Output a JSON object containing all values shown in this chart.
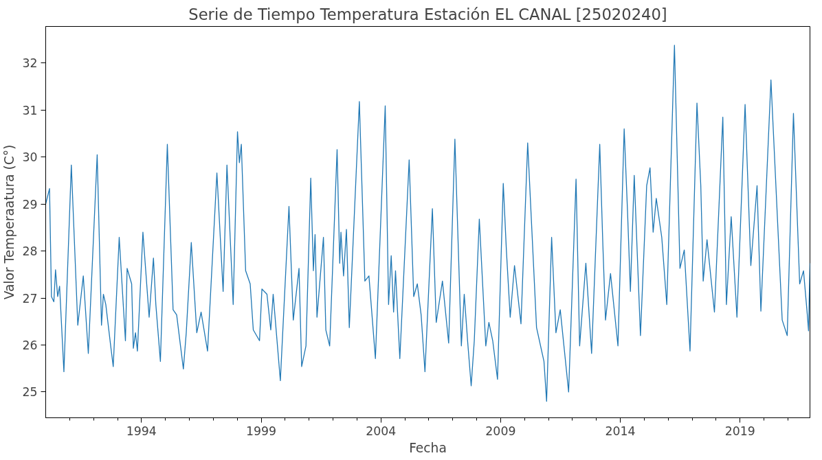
{
  "chart_data": {
    "type": "line",
    "title": "Serie de Tiempo Temperatura Estación EL CANAL [25020240]",
    "xlabel": "Fecha",
    "ylabel": "Valor Temperaatura (C°)",
    "xlim": [
      1990.0,
      2021.92
    ],
    "ylim": [
      24.45,
      32.78
    ],
    "xticks": [
      {
        "value": 1991,
        "label": null
      },
      {
        "value": 1992,
        "label": null
      },
      {
        "value": 1993,
        "label": null
      },
      1994,
      {
        "value": 1995,
        "label": null
      },
      {
        "value": 1996,
        "label": null
      },
      {
        "value": 1997,
        "label": null
      },
      {
        "value": 1998,
        "label": null
      },
      1999,
      {
        "value": 2000,
        "label": null
      },
      {
        "value": 2001,
        "label": null
      },
      {
        "value": 2002,
        "label": null
      },
      {
        "value": 2003,
        "label": null
      },
      2004,
      {
        "value": 2005,
        "label": null
      },
      {
        "value": 2006,
        "label": null
      },
      {
        "value": 2007,
        "label": null
      },
      {
        "value": 2008,
        "label": null
      },
      2009,
      {
        "value": 2010,
        "label": null
      },
      {
        "value": 2011,
        "label": null
      },
      {
        "value": 2012,
        "label": null
      },
      {
        "value": 2013,
        "label": null
      },
      2014,
      {
        "value": 2015,
        "label": null
      },
      {
        "value": 2016,
        "label": null
      },
      {
        "value": 2017,
        "label": null
      },
      {
        "value": 2018,
        "label": null
      },
      2019,
      {
        "value": 2020,
        "label": null
      },
      {
        "value": 2021,
        "label": null
      }
    ],
    "yticks": [
      25,
      26,
      27,
      28,
      29,
      30,
      31,
      32
    ],
    "grid": false,
    "series": [
      {
        "color": "#1f77b4",
        "x": [
          1990.0,
          1990.16,
          1990.24,
          1990.34,
          1990.41,
          1990.5,
          1990.58,
          1990.76,
          1991.07,
          1991.34,
          1991.57,
          1991.78,
          1992.15,
          1992.33,
          1992.41,
          1992.51,
          1992.7,
          1992.82,
          1993.07,
          1993.33,
          1993.4,
          1993.59,
          1993.66,
          1993.75,
          1993.83,
          1994.06,
          1994.32,
          1994.5,
          1994.6,
          1994.79,
          1995.08,
          1995.32,
          1995.47,
          1995.63,
          1995.75,
          1995.87,
          1996.08,
          1996.31,
          1996.49,
          1996.76,
          1997.15,
          1997.41,
          1997.57,
          1997.83,
          1998.01,
          1998.09,
          1998.17,
          1998.35,
          1998.54,
          1998.67,
          1998.93,
          1999.03,
          1999.24,
          1999.4,
          1999.5,
          1999.8,
          2000.16,
          2000.34,
          2000.58,
          2000.69,
          2000.87,
          2001.07,
          2001.18,
          2001.25,
          2001.33,
          2001.47,
          2001.6,
          2001.7,
          2001.86,
          2002.17,
          2002.28,
          2002.33,
          2002.44,
          2002.56,
          2002.68,
          2003.1,
          2003.33,
          2003.5,
          2003.77,
          2004.18,
          2004.32,
          2004.43,
          2004.53,
          2004.61,
          2004.79,
          2005.18,
          2005.37,
          2005.52,
          2005.68,
          2005.84,
          2006.15,
          2006.31,
          2006.57,
          2006.83,
          2007.09,
          2007.36,
          2007.48,
          2007.62,
          2007.77,
          2007.9,
          2008.11,
          2008.38,
          2008.51,
          2008.67,
          2008.87,
          2009.11,
          2009.24,
          2009.4,
          2009.58,
          2009.85,
          2010.13,
          2010.5,
          2010.81,
          2010.92,
          2011.13,
          2011.31,
          2011.49,
          2011.84,
          2012.15,
          2012.3,
          2012.56,
          2012.8,
          2013.14,
          2013.27,
          2013.38,
          2013.59,
          2013.9,
          2014.16,
          2014.3,
          2014.42,
          2014.58,
          2014.84,
          2015.1,
          2015.24,
          2015.37,
          2015.5,
          2015.73,
          2015.94,
          2016.26,
          2016.49,
          2016.67,
          2016.91,
          2017.2,
          2017.36,
          2017.46,
          2017.62,
          2017.93,
          2018.28,
          2018.43,
          2018.63,
          2018.87,
          2019.21,
          2019.45,
          2019.71,
          2019.87,
          2020.29,
          2020.76,
          2020.97,
          2021.23,
          2021.49,
          2021.65,
          2021.81,
          2021.86,
          2021.92
        ],
        "values": [
          29.0,
          29.33,
          27.03,
          26.92,
          27.6,
          27.03,
          27.25,
          25.43,
          29.83,
          26.42,
          27.47,
          25.82,
          30.05,
          26.42,
          27.08,
          26.86,
          26.04,
          25.54,
          28.29,
          26.09,
          27.63,
          27.3,
          25.93,
          26.26,
          25.87,
          28.4,
          26.59,
          27.85,
          26.86,
          25.65,
          30.27,
          26.75,
          26.64,
          25.98,
          25.49,
          26.26,
          28.18,
          26.26,
          26.7,
          25.87,
          29.66,
          27.14,
          29.83,
          26.86,
          30.54,
          29.88,
          30.27,
          27.58,
          27.3,
          26.32,
          26.09,
          27.19,
          27.08,
          26.32,
          27.08,
          25.24,
          28.95,
          26.53,
          27.63,
          25.54,
          25.98,
          29.55,
          27.58,
          28.35,
          26.59,
          27.47,
          28.29,
          26.32,
          25.98,
          30.16,
          27.74,
          28.4,
          27.47,
          28.46,
          26.37,
          31.18,
          27.36,
          27.47,
          25.71,
          31.09,
          26.86,
          27.9,
          26.7,
          27.58,
          25.71,
          29.94,
          27.03,
          27.3,
          26.64,
          25.43,
          28.9,
          26.48,
          27.36,
          26.04,
          30.38,
          25.98,
          27.08,
          26.09,
          25.13,
          26.09,
          28.68,
          25.98,
          26.48,
          26.09,
          25.27,
          29.44,
          28.02,
          26.59,
          27.69,
          26.45,
          30.3,
          26.37,
          25.65,
          24.8,
          28.29,
          26.26,
          26.75,
          25.0,
          29.53,
          25.98,
          27.74,
          25.82,
          30.27,
          28.13,
          26.53,
          27.52,
          25.98,
          30.6,
          28.84,
          27.14,
          29.61,
          26.2,
          29.39,
          29.77,
          28.4,
          29.12,
          28.29,
          26.86,
          32.38,
          27.63,
          28.02,
          25.87,
          31.15,
          29.39,
          27.36,
          28.24,
          26.7,
          30.85,
          26.86,
          28.73,
          26.59,
          31.12,
          27.69,
          29.39,
          26.72,
          31.64,
          26.53,
          26.2,
          30.93,
          27.3,
          27.58,
          26.64,
          26.3,
          27.74
        ]
      }
    ]
  }
}
